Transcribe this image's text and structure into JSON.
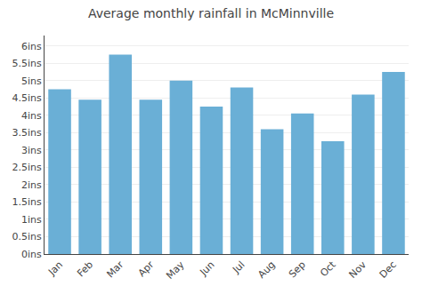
{
  "chart_data": {
    "type": "bar",
    "title": "Average monthly rainfall in McMinnville",
    "categories": [
      "Jan",
      "Feb",
      "Mar",
      "Apr",
      "May",
      "Jun",
      "Jul",
      "Aug",
      "Sep",
      "Oct",
      "Nov",
      "Dec"
    ],
    "values": [
      4.75,
      4.45,
      5.75,
      4.45,
      5.0,
      4.25,
      4.8,
      3.6,
      4.05,
      3.25,
      4.6,
      5.25
    ],
    "color": "#6aafd6",
    "ylim": [
      0,
      6.3
    ],
    "yticks": [
      {
        "value": 0,
        "label": "0ins"
      },
      {
        "value": 0.5,
        "label": "0.5ins"
      },
      {
        "value": 1.0,
        "label": "1ins"
      },
      {
        "value": 1.5,
        "label": "1.5ins"
      },
      {
        "value": 2.0,
        "label": "2ins"
      },
      {
        "value": 2.5,
        "label": "2.5ins"
      },
      {
        "value": 3.0,
        "label": "3ins"
      },
      {
        "value": 3.5,
        "label": "3.5ins"
      },
      {
        "value": 4.0,
        "label": "4ins"
      },
      {
        "value": 4.5,
        "label": "4.5ins"
      },
      {
        "value": 5.0,
        "label": "5ins"
      },
      {
        "value": 5.5,
        "label": "5.5ins"
      },
      {
        "value": 6.0,
        "label": "6ins"
      }
    ],
    "grid": true
  }
}
